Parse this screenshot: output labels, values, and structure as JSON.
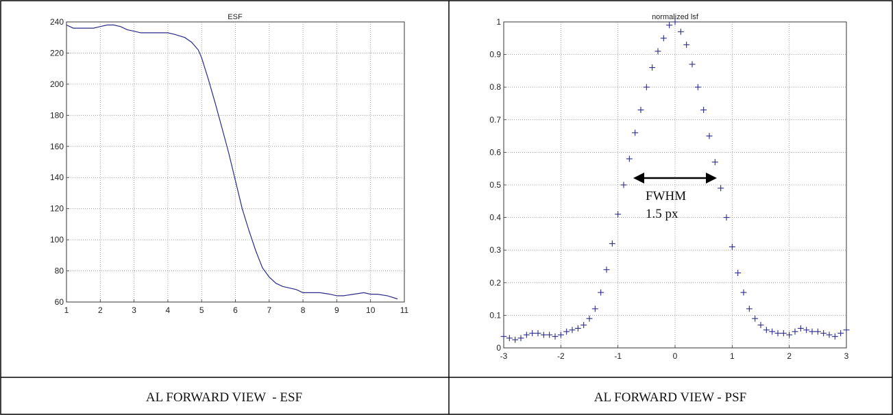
{
  "panels": {
    "left_caption": "AL FORWARD VIEW  - ESF",
    "right_caption": "AL FORWARD VIEW - PSF"
  },
  "annotation": {
    "line1": "FWHM",
    "line2": "1.5 px"
  },
  "chart_data": [
    {
      "type": "line",
      "title": "ESF",
      "xlabel": "",
      "ylabel": "",
      "xlim": [
        1,
        11
      ],
      "ylim": [
        60,
        240
      ],
      "xticks": [
        1,
        2,
        3,
        4,
        5,
        6,
        7,
        8,
        9,
        10,
        11
      ],
      "yticks": [
        60,
        80,
        100,
        120,
        140,
        160,
        180,
        200,
        220,
        240
      ],
      "grid": true,
      "series": [
        {
          "color": "#2a2a8a",
          "x": [
            1.0,
            1.2,
            1.5,
            1.8,
            2.0,
            2.2,
            2.4,
            2.6,
            2.8,
            3.0,
            3.2,
            3.5,
            3.8,
            4.0,
            4.2,
            4.5,
            4.7,
            4.9,
            5.0,
            5.2,
            5.4,
            5.6,
            5.8,
            6.0,
            6.2,
            6.4,
            6.6,
            6.8,
            7.0,
            7.2,
            7.4,
            7.6,
            7.8,
            8.0,
            8.2,
            8.5,
            8.8,
            9.0,
            9.2,
            9.5,
            9.8,
            10.0,
            10.2,
            10.5,
            10.8
          ],
          "values": [
            238,
            236,
            236,
            236,
            237,
            238,
            238,
            237,
            235,
            234,
            233,
            233,
            233,
            233,
            232,
            230,
            227,
            222,
            217,
            203,
            188,
            172,
            156,
            138,
            120,
            106,
            93,
            82,
            76,
            72,
            70,
            69,
            68,
            66,
            66,
            66,
            65,
            64,
            64,
            65,
            66,
            65,
            65,
            64,
            62
          ]
        }
      ]
    },
    {
      "type": "scatter",
      "title": "normalized lsf",
      "xlabel": "",
      "ylabel": "",
      "xlim": [
        -3,
        3
      ],
      "ylim": [
        0,
        1
      ],
      "xticks": [
        -3,
        -2,
        -1,
        0,
        1,
        2,
        3
      ],
      "yticks": [
        0,
        0.1,
        0.2,
        0.3,
        0.4,
        0.5,
        0.6,
        0.7,
        0.8,
        0.9,
        1
      ],
      "grid": true,
      "marker": "+",
      "series": [
        {
          "color": "#2a2a8a",
          "x": [
            -3.0,
            -2.9,
            -2.8,
            -2.7,
            -2.6,
            -2.5,
            -2.4,
            -2.3,
            -2.2,
            -2.1,
            -2.0,
            -1.9,
            -1.8,
            -1.7,
            -1.6,
            -1.5,
            -1.4,
            -1.3,
            -1.2,
            -1.1,
            -1.0,
            -0.9,
            -0.8,
            -0.7,
            -0.6,
            -0.5,
            -0.4,
            -0.3,
            -0.2,
            -0.1,
            0.0,
            0.1,
            0.2,
            0.3,
            0.4,
            0.5,
            0.6,
            0.7,
            0.8,
            0.9,
            1.0,
            1.1,
            1.2,
            1.3,
            1.4,
            1.5,
            1.6,
            1.7,
            1.8,
            1.9,
            2.0,
            2.1,
            2.2,
            2.3,
            2.4,
            2.5,
            2.6,
            2.7,
            2.8,
            2.9,
            3.0
          ],
          "values": [
            0.035,
            0.03,
            0.025,
            0.03,
            0.04,
            0.045,
            0.045,
            0.04,
            0.04,
            0.035,
            0.04,
            0.05,
            0.055,
            0.06,
            0.07,
            0.09,
            0.12,
            0.17,
            0.24,
            0.32,
            0.41,
            0.5,
            0.58,
            0.66,
            0.73,
            0.8,
            0.86,
            0.91,
            0.95,
            0.99,
            1.0,
            0.97,
            0.93,
            0.87,
            0.8,
            0.73,
            0.65,
            0.57,
            0.49,
            0.4,
            0.31,
            0.23,
            0.17,
            0.12,
            0.09,
            0.07,
            0.055,
            0.05,
            0.045,
            0.045,
            0.04,
            0.05,
            0.06,
            0.055,
            0.05,
            0.05,
            0.045,
            0.04,
            0.035,
            0.045,
            0.055
          ]
        }
      ]
    }
  ]
}
